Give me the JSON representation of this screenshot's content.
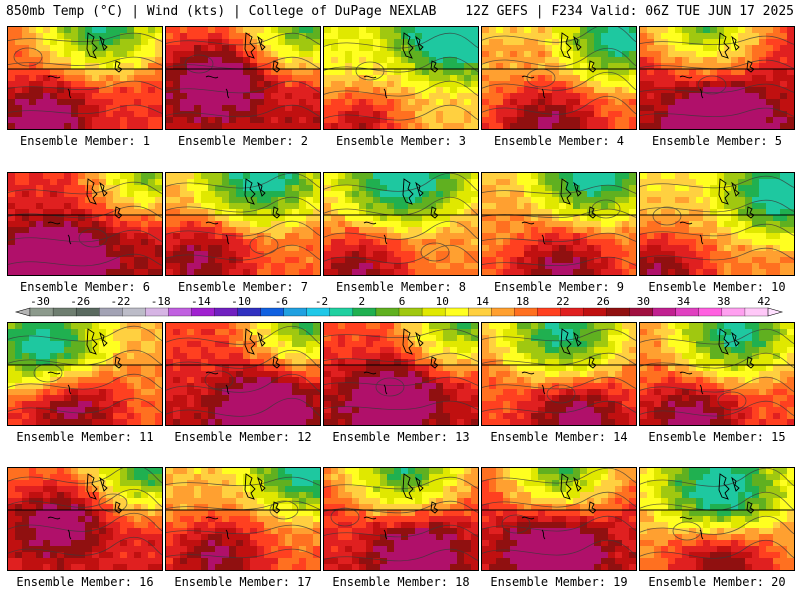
{
  "header": {
    "left": "850mb Temp (°C) | Wind (kts) | College of DuPage NEXLAB",
    "right": "12Z GEFS | F234 Valid: 06Z TUE JUN 17 2025"
  },
  "colorbar": {
    "labels": [
      "-30",
      "-26",
      "-22",
      "-18",
      "-14",
      "-10",
      "-6",
      "-2",
      "2",
      "6",
      "10",
      "14",
      "18",
      "22",
      "26",
      "30",
      "34",
      "38",
      "42"
    ],
    "colors": [
      "#8c9a8c",
      "#6e7e70",
      "#5a6a60",
      "#a2a2b4",
      "#bcbcc8",
      "#d6b4e4",
      "#c060e0",
      "#a020d0",
      "#7020c0",
      "#3030c0",
      "#1060e0",
      "#20a0e0",
      "#20c8e8",
      "#20d0a0",
      "#20b050",
      "#60b020",
      "#a0c810",
      "#e0e800",
      "#ffff20",
      "#ffd040",
      "#ffa030",
      "#ff7020",
      "#ff4020",
      "#e02020",
      "#c01010",
      "#901010",
      "#a01040",
      "#c02090",
      "#e040c0",
      "#ff60e0",
      "#ffa0f0",
      "#ffc8f8"
    ]
  },
  "members": [
    {
      "label": "Ensemble Member: 1",
      "warm": 0.7,
      "hot": [
        0.2,
        0.85
      ],
      "cool": [
        0.6,
        0.0
      ]
    },
    {
      "label": "Ensemble Member: 2",
      "warm": 0.8,
      "hot": [
        0.3,
        0.5
      ],
      "cool": [
        0.9,
        0.0
      ]
    },
    {
      "label": "Ensemble Member: 3",
      "warm": 0.45,
      "hot": [
        0.2,
        0.9
      ],
      "cool": [
        0.85,
        0.05
      ]
    },
    {
      "label": "Ensemble Member: 4",
      "warm": 0.6,
      "hot": [
        0.4,
        0.9
      ],
      "cool": [
        0.9,
        0.1
      ]
    },
    {
      "label": "Ensemble Member: 5",
      "warm": 0.85,
      "hot": [
        0.5,
        0.9
      ],
      "cool": [
        0.4,
        0.0
      ]
    },
    {
      "label": "Ensemble Member: 6",
      "warm": 0.85,
      "hot": [
        0.3,
        0.8
      ],
      "cool": [
        0.9,
        0.0
      ]
    },
    {
      "label": "Ensemble Member: 7",
      "warm": 0.6,
      "hot": [
        0.2,
        0.8
      ],
      "cool": [
        0.6,
        0.05
      ]
    },
    {
      "label": "Ensemble Member: 8",
      "warm": 0.55,
      "hot": [
        0.2,
        0.9
      ],
      "cool": [
        0.5,
        0.05
      ]
    },
    {
      "label": "Ensemble Member: 9",
      "warm": 0.6,
      "hot": [
        0.5,
        0.9
      ],
      "cool": [
        0.7,
        0.0
      ]
    },
    {
      "label": "Ensemble Member: 10",
      "warm": 0.55,
      "hot": [
        0.1,
        0.9
      ],
      "cool": [
        0.9,
        0.2
      ]
    },
    {
      "label": "Ensemble Member: 11",
      "warm": 0.6,
      "hot": [
        0.4,
        0.8
      ],
      "cool": [
        0.2,
        0.2
      ]
    },
    {
      "label": "Ensemble Member: 12",
      "warm": 0.8,
      "hot": [
        0.6,
        0.8
      ],
      "cool": [
        0.9,
        0.0
      ]
    },
    {
      "label": "Ensemble Member: 13",
      "warm": 0.8,
      "hot": [
        0.4,
        0.7
      ],
      "cool": [
        0.9,
        0.0
      ]
    },
    {
      "label": "Ensemble Member: 14",
      "warm": 0.65,
      "hot": [
        0.6,
        0.9
      ],
      "cool": [
        0.5,
        0.1
      ]
    },
    {
      "label": "Ensemble Member: 15",
      "warm": 0.65,
      "hot": [
        0.3,
        0.9
      ],
      "cool": [
        0.6,
        0.1
      ]
    },
    {
      "label": "Ensemble Member: 16",
      "warm": 0.75,
      "hot": [
        0.3,
        0.5
      ],
      "cool": [
        0.9,
        0.0
      ]
    },
    {
      "label": "Ensemble Member: 17",
      "warm": 0.6,
      "hot": [
        0.3,
        0.8
      ],
      "cool": [
        0.9,
        0.0
      ]
    },
    {
      "label": "Ensemble Member: 18",
      "warm": 0.75,
      "hot": [
        0.6,
        0.8
      ],
      "cool": [
        0.5,
        0.0
      ]
    },
    {
      "label": "Ensemble Member: 19",
      "warm": 0.8,
      "hot": [
        0.45,
        0.75
      ],
      "cool": [
        0.5,
        0.0
      ]
    },
    {
      "label": "Ensemble Member: 20",
      "warm": 0.55,
      "hot": [
        0.5,
        0.9
      ],
      "cool": [
        0.5,
        0.2
      ]
    }
  ]
}
